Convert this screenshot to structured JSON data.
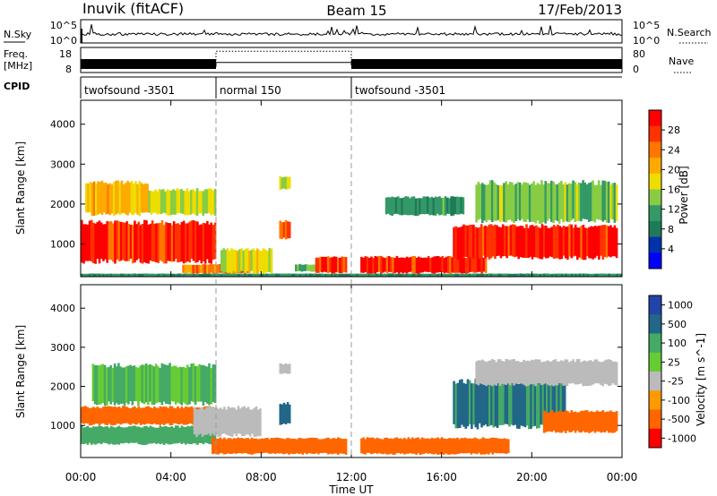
{
  "header": {
    "title": "Inuvik (fitACF)",
    "beam": "Beam 15",
    "date": "17/Feb/2013"
  },
  "noise_panel": {
    "left_label": "N.Sky",
    "left_ticks": [
      "10^5",
      "10^0"
    ],
    "right_label": "N.Search",
    "right_ticks": [
      "10^5",
      "10^0"
    ]
  },
  "freq_panel": {
    "left_label_1": "Freq.",
    "left_label_2": "[MHz]",
    "left_ticks": [
      "18",
      "8"
    ],
    "right_label": "Nave",
    "right_ticks": [
      "80",
      "0"
    ]
  },
  "cpid": {
    "label": "CPID",
    "segments": [
      {
        "name": "twofsound -3501",
        "start_h": 0,
        "end_h": 6
      },
      {
        "name": "normal 150",
        "start_h": 6,
        "end_h": 12
      },
      {
        "name": "twofsound -3501",
        "start_h": 12,
        "end_h": 24
      }
    ]
  },
  "axes": {
    "xlabel": "Time UT",
    "xticks": [
      "00:00",
      "04:00",
      "08:00",
      "12:00",
      "16:00",
      "20:00",
      "00:00"
    ],
    "ylabel": "Slant Range [km]",
    "yticks": [
      "1000",
      "2000",
      "3000",
      "4000"
    ]
  },
  "power_colorbar": {
    "label": "Power [dB]",
    "ticks": [
      "28",
      "24",
      "20",
      "16",
      "12",
      "8",
      "4"
    ],
    "colors": [
      "#ff0000",
      "#ff3300",
      "#ff7700",
      "#ffaa00",
      "#eedd00",
      "#88cc44",
      "#339966",
      "#1f7a5a",
      "#0033aa",
      "#0000ff"
    ]
  },
  "velocity_colorbar": {
    "label": "Velocity [m s^-1]",
    "ticks": [
      "1000",
      "500",
      "100",
      "25",
      "-25",
      "-100",
      "-500",
      "-1000"
    ],
    "colors": [
      "#2244aa",
      "#226688",
      "#44aa66",
      "#66cc33",
      "#bbbbbb",
      "#ff9900",
      "#ff6600",
      "#ff0000"
    ]
  },
  "chart_data": [
    {
      "type": "heatmap",
      "title": "Power",
      "xlabel": "Time UT",
      "ylabel": "Slant Range [km]",
      "xlim": [
        0,
        24
      ],
      "ylim": [
        180,
        4600
      ],
      "colorbar_label": "Power [dB]",
      "colorbar_ticks": [
        4,
        8,
        12,
        16,
        20,
        24,
        28
      ],
      "regions": [
        {
          "t0": 0.0,
          "t1": 6.0,
          "r0": 500,
          "r1": 1600,
          "value": 27
        },
        {
          "t0": 0.2,
          "t1": 3.0,
          "r0": 1700,
          "r1": 2600,
          "value": 18
        },
        {
          "t0": 3.0,
          "t1": 6.0,
          "r0": 1700,
          "r1": 2400,
          "value": 14
        },
        {
          "t0": 4.5,
          "t1": 7.5,
          "r0": 250,
          "r1": 500,
          "value": 22
        },
        {
          "t0": 6.2,
          "t1": 8.5,
          "r0": 250,
          "r1": 900,
          "value": 15
        },
        {
          "t0": 8.8,
          "t1": 9.3,
          "r0": 1100,
          "r1": 1600,
          "value": 24
        },
        {
          "t0": 8.8,
          "t1": 9.3,
          "r0": 2350,
          "r1": 2700,
          "value": 14
        },
        {
          "t0": 9.5,
          "t1": 10.6,
          "r0": 300,
          "r1": 500,
          "value": 10
        },
        {
          "t0": 10.4,
          "t1": 11.8,
          "r0": 250,
          "r1": 700,
          "value": 26
        },
        {
          "t0": 12.4,
          "t1": 18.0,
          "r0": 250,
          "r1": 700,
          "value": 27
        },
        {
          "t0": 13.5,
          "t1": 17.0,
          "r0": 1700,
          "r1": 2200,
          "value": 9
        },
        {
          "t0": 16.5,
          "t1": 23.8,
          "r0": 600,
          "r1": 1500,
          "value": 27
        },
        {
          "t0": 17.5,
          "t1": 23.8,
          "r0": 1500,
          "r1": 2600,
          "value": 12
        },
        {
          "t0": 0.0,
          "t1": 24.0,
          "r0": 180,
          "r1": 260,
          "value": 8
        }
      ]
    },
    {
      "type": "heatmap",
      "title": "Velocity",
      "xlabel": "Time UT",
      "ylabel": "Slant Range [km]",
      "xlim": [
        0,
        24
      ],
      "ylim": [
        180,
        4600
      ],
      "colorbar_label": "Velocity [m s^-1]",
      "colorbar_ticks": [
        -1000,
        -500,
        -100,
        -25,
        25,
        100,
        500,
        1000
      ],
      "regions": [
        {
          "t0": 0.0,
          "t1": 6.0,
          "r0": 1000,
          "r1": 1500,
          "value": -400
        },
        {
          "t0": 0.0,
          "t1": 6.0,
          "r0": 500,
          "r1": 1000,
          "value": 120
        },
        {
          "t0": 0.5,
          "t1": 6.0,
          "r0": 1500,
          "r1": 2600,
          "value": 60
        },
        {
          "t0": 5.0,
          "t1": 8.0,
          "r0": 700,
          "r1": 1500,
          "value": 0
        },
        {
          "t0": 5.8,
          "t1": 11.8,
          "r0": 250,
          "r1": 700,
          "value": -150
        },
        {
          "t0": 8.8,
          "t1": 9.3,
          "r0": 1000,
          "r1": 1600,
          "value": 400
        },
        {
          "t0": 8.8,
          "t1": 9.3,
          "r0": 2300,
          "r1": 2600,
          "value": 0
        },
        {
          "t0": 12.4,
          "t1": 19.0,
          "r0": 250,
          "r1": 700,
          "value": -200
        },
        {
          "t0": 16.5,
          "t1": 21.5,
          "r0": 900,
          "r1": 2200,
          "value": 300
        },
        {
          "t0": 17.5,
          "t1": 23.8,
          "r0": 2000,
          "r1": 2700,
          "value": 0
        },
        {
          "t0": 20.5,
          "t1": 23.8,
          "r0": 800,
          "r1": 1400,
          "value": -400
        }
      ]
    },
    {
      "type": "line",
      "title": "N.Sky",
      "xlim": [
        0,
        24
      ],
      "series": [
        {
          "name": "N.Sky",
          "x": [
            0,
            6,
            12,
            18,
            24
          ],
          "values": [
            2.2,
            2.2,
            2.2,
            2.2,
            2.2
          ]
        }
      ]
    },
    {
      "type": "line",
      "title": "Freq.",
      "xlim": [
        0,
        24
      ],
      "ylim": [
        8,
        18
      ],
      "series": [
        {
          "name": "Freq.",
          "x": [
            0,
            6,
            6,
            12,
            12,
            24
          ],
          "values": [
            11,
            11,
            12,
            12,
            11,
            11
          ]
        },
        {
          "name": "Nave",
          "x": [
            0,
            6,
            6,
            12,
            12,
            24
          ],
          "values": [
            20,
            20,
            68,
            68,
            20,
            20
          ]
        }
      ]
    }
  ]
}
